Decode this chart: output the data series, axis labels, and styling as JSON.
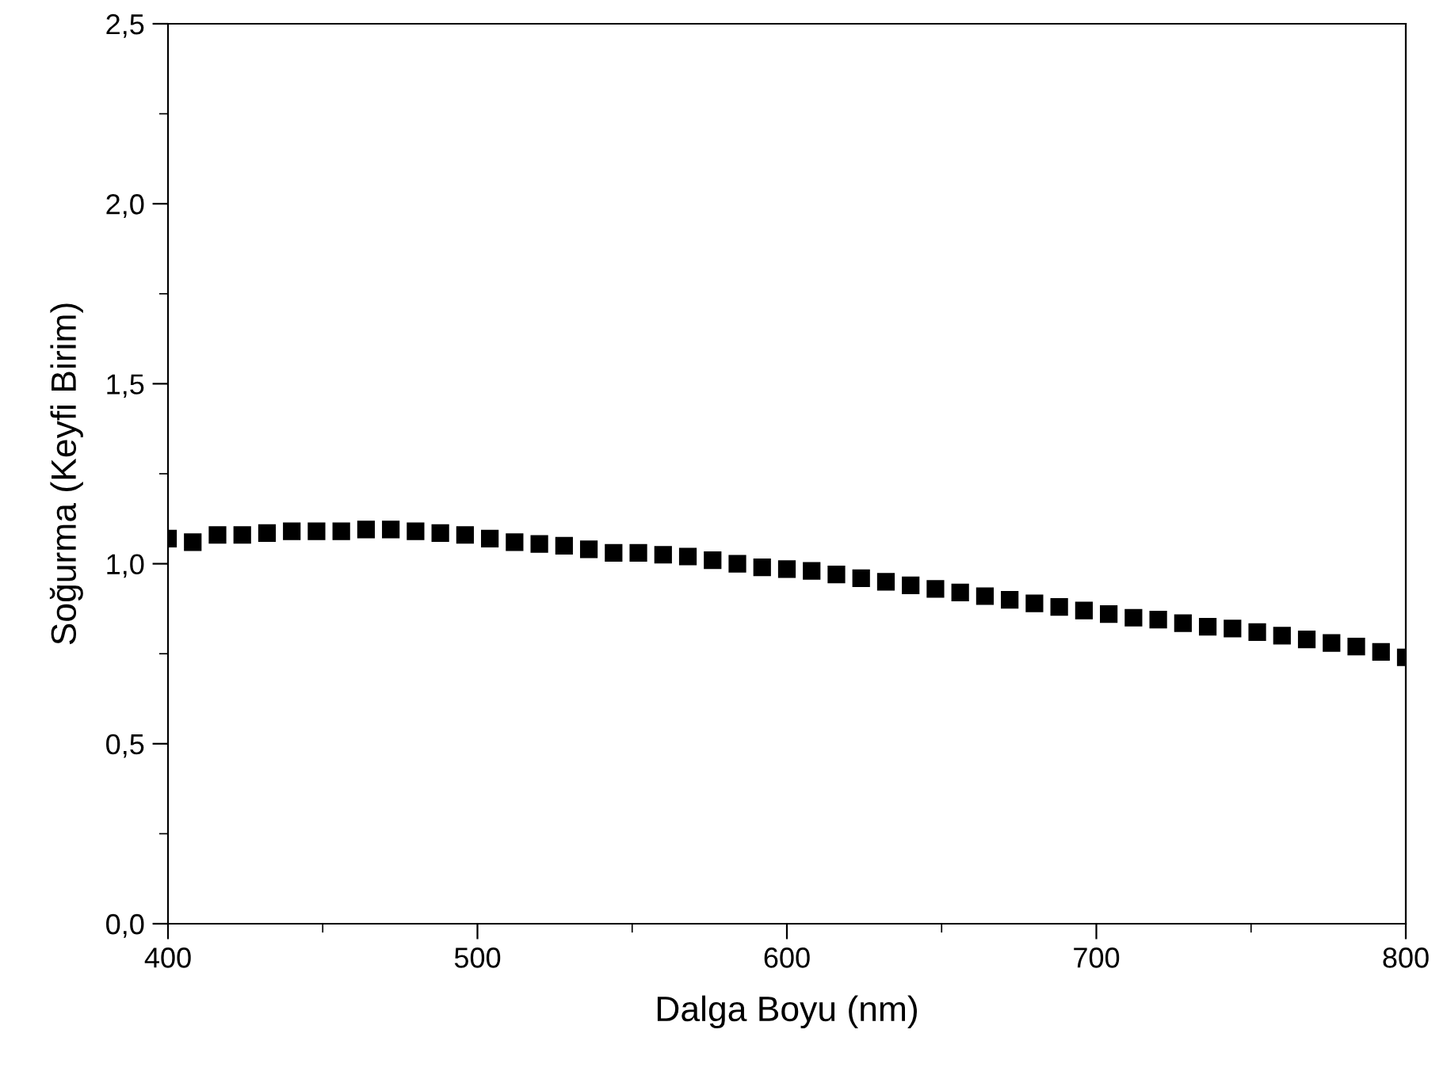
{
  "chart_data": {
    "type": "scatter",
    "xlabel": "Dalga Boyu (nm)",
    "ylabel": "Soğurma (Keyfi Birim)",
    "x": [
      400,
      408,
      416,
      424,
      432,
      440,
      448,
      456,
      464,
      472,
      480,
      488,
      496,
      504,
      512,
      520,
      528,
      536,
      544,
      552,
      560,
      568,
      576,
      584,
      592,
      600,
      608,
      616,
      624,
      632,
      640,
      648,
      656,
      664,
      672,
      680,
      688,
      696,
      704,
      712,
      720,
      728,
      736,
      744,
      752,
      760,
      768,
      776,
      784,
      792,
      800
    ],
    "series": [
      {
        "color": "#000000",
        "values": [
          1.07,
          1.06,
          1.08,
          1.08,
          1.085,
          1.09,
          1.09,
          1.09,
          1.095,
          1.095,
          1.09,
          1.085,
          1.08,
          1.07,
          1.06,
          1.055,
          1.05,
          1.04,
          1.03,
          1.03,
          1.025,
          1.02,
          1.01,
          1.0,
          0.99,
          0.985,
          0.98,
          0.97,
          0.96,
          0.95,
          0.94,
          0.93,
          0.92,
          0.91,
          0.9,
          0.89,
          0.88,
          0.87,
          0.86,
          0.85,
          0.845,
          0.835,
          0.825,
          0.82,
          0.81,
          0.8,
          0.79,
          0.78,
          0.77,
          0.755,
          0.74
        ]
      }
    ],
    "marker": "square",
    "xlim": [
      400,
      800
    ],
    "xticks": [
      400,
      500,
      600,
      700,
      800
    ],
    "ylim": [
      0,
      2.5
    ],
    "yticks": [
      {
        "value": 0,
        "label": "0,0"
      },
      {
        "value": 0.5,
        "label": "0,5"
      },
      {
        "value": 1,
        "label": "1,0"
      },
      {
        "value": 1.5,
        "label": "1,5"
      },
      {
        "value": 2,
        "label": "2,0"
      },
      {
        "value": 2.5,
        "label": "2,5"
      }
    ],
    "grid": false
  }
}
